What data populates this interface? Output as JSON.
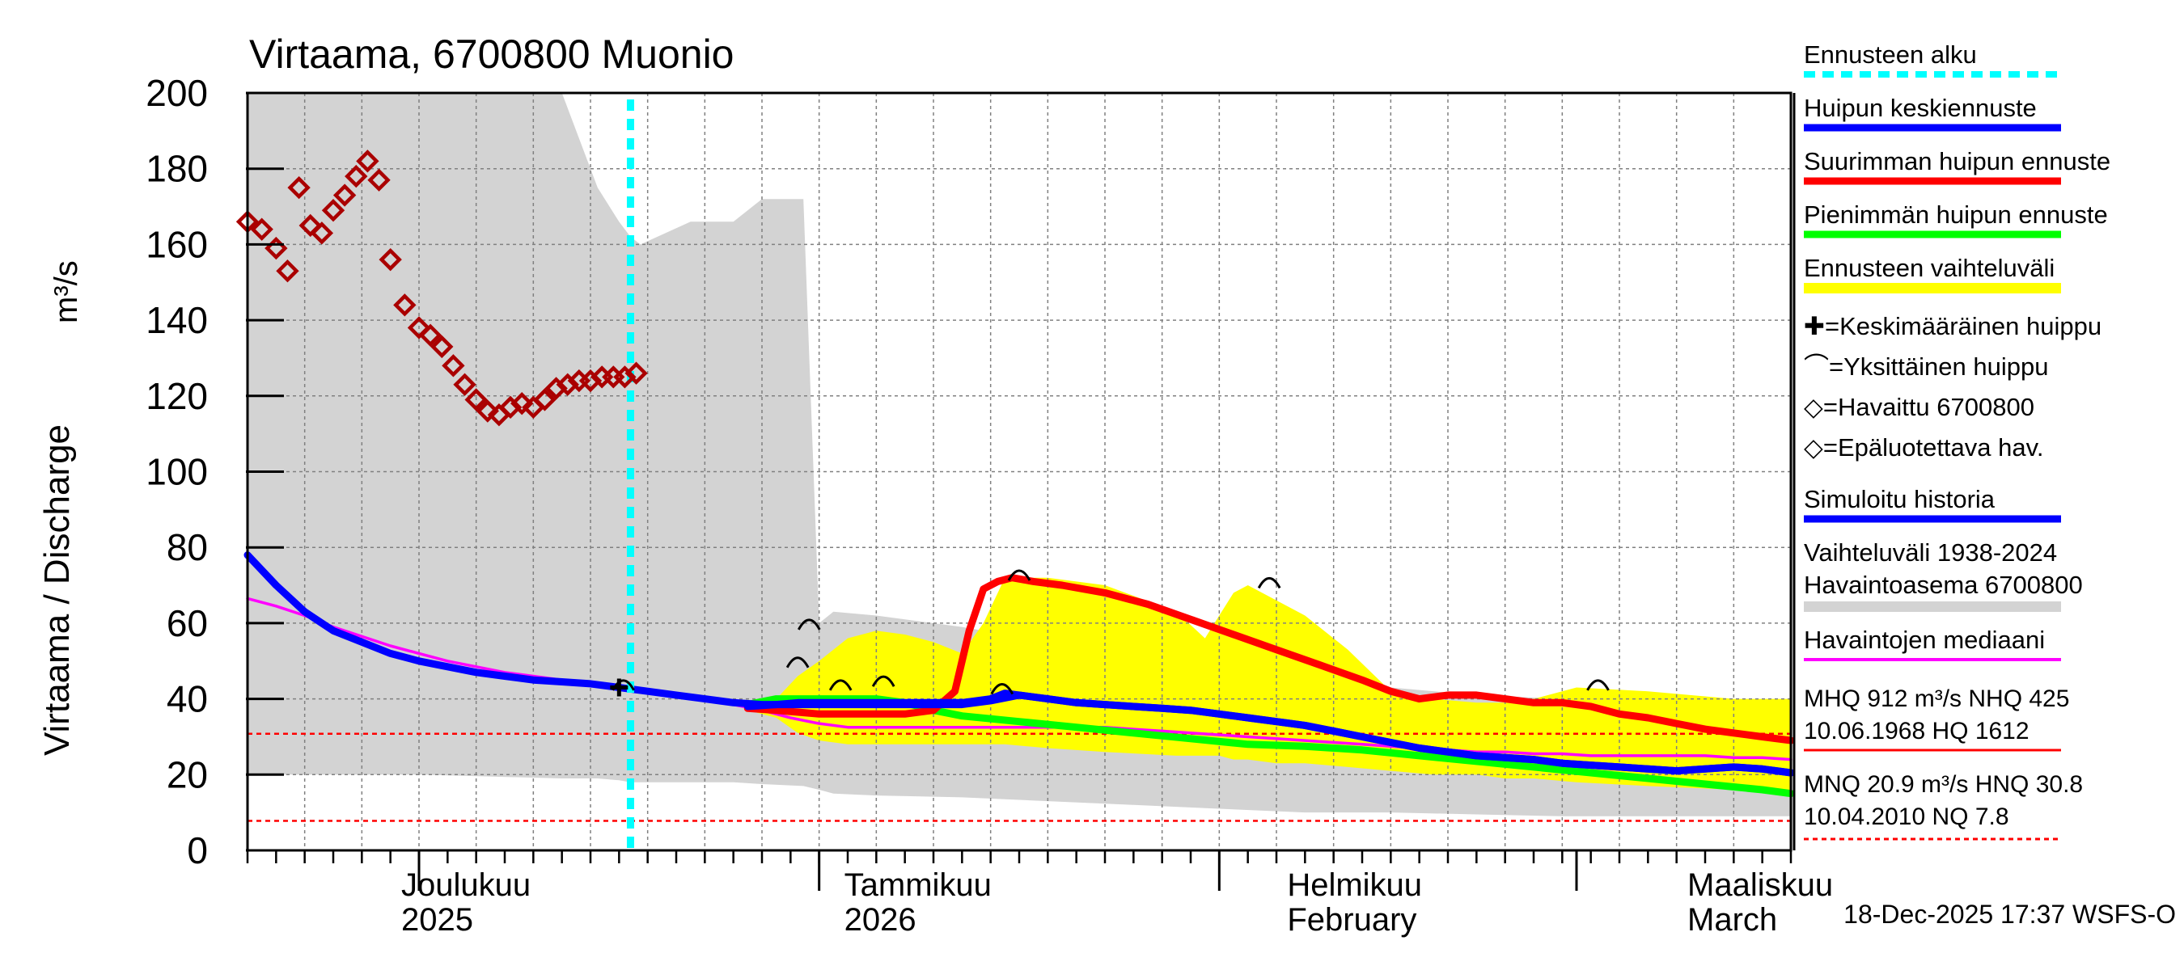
{
  "chart_data": {
    "type": "line",
    "title": "Virtaama, 6700800 Muonio",
    "ylabel": "Virtaama / Discharge",
    "yunit": "m³/s",
    "ylim": [
      0,
      200
    ],
    "yticks": [
      0,
      20,
      40,
      60,
      80,
      100,
      120,
      140,
      160,
      180,
      200
    ],
    "xlim_days": [
      0,
      108
    ],
    "month_labels": [
      {
        "day": 15,
        "line1": "Joulukuu",
        "line2": "2025"
      },
      {
        "day": 46,
        "line1": "Tammikuu",
        "line2": "2026"
      },
      {
        "day": 77,
        "line1": "Helmikuu",
        "line2": "February"
      },
      {
        "day": 105,
        "line1": "Maaliskuu",
        "line2": "March"
      }
    ],
    "month_boundaries": [
      12,
      40,
      68,
      93
    ],
    "forecast_start_day": 26.8,
    "reference_lines": [
      {
        "name": "HNQ",
        "value": 30.8
      },
      {
        "name": "NQ",
        "value": 7.8
      }
    ],
    "history_range": {
      "x": [
        0,
        12,
        22,
        24.5,
        26,
        26.8,
        27.5,
        31,
        34,
        36,
        38.9,
        40,
        41,
        44,
        50,
        56,
        62,
        68,
        74,
        80,
        86,
        92,
        98,
        104,
        108
      ],
      "upper": [
        200,
        200,
        200,
        175,
        166,
        162,
        160,
        166,
        166,
        172,
        172,
        60,
        63,
        62,
        59,
        55,
        50,
        47,
        44,
        43,
        41,
        40,
        40,
        39,
        38
      ],
      "lower": [
        20,
        20,
        19,
        19,
        18.5,
        18,
        18,
        18,
        18,
        17.5,
        17,
        16,
        15,
        14.5,
        14,
        13,
        12,
        11,
        10,
        10,
        9.5,
        9,
        9,
        9,
        9
      ]
    },
    "forecast_range": {
      "x": [
        35,
        37,
        38.5,
        40,
        42,
        44,
        46,
        48,
        50,
        51.5,
        53,
        56,
        60,
        65,
        67,
        68,
        69,
        70,
        72,
        74,
        77,
        80,
        83,
        86,
        88,
        90,
        93,
        98,
        104,
        108
      ],
      "upper": [
        38,
        40,
        46,
        50,
        56,
        58,
        57,
        55,
        52,
        60,
        72,
        72,
        70,
        63,
        56,
        62,
        68,
        70,
        66,
        62,
        53,
        42,
        40,
        39,
        39,
        40,
        43,
        42,
        40,
        40
      ],
      "lower": [
        37,
        35,
        31,
        29,
        28,
        28,
        28,
        28,
        28,
        28,
        28,
        27,
        26,
        25,
        25,
        25,
        24,
        24,
        23,
        23,
        22,
        21,
        20,
        20,
        19,
        19,
        18,
        17,
        16,
        15
      ]
    },
    "series": [
      {
        "name": "Simuloitu historia",
        "color": "#0000ff",
        "x": [
          0,
          2,
          4,
          6,
          8,
          10,
          12,
          14,
          16,
          18,
          20,
          22,
          24,
          26,
          28,
          30,
          32,
          34,
          36,
          38,
          40,
          42,
          44,
          46,
          48,
          50,
          52,
          54,
          56,
          58,
          60,
          62,
          64,
          66,
          68,
          70,
          72,
          74,
          76,
          78,
          80,
          82,
          84,
          86,
          88,
          90,
          92,
          94,
          96,
          98,
          100,
          102,
          104,
          106,
          108
        ],
        "y": [
          78,
          70,
          63,
          58,
          55,
          52,
          50,
          48.5,
          47,
          46,
          45,
          44.5,
          44,
          43,
          42,
          41,
          40,
          39,
          38.5,
          38.5,
          38.5,
          38.5,
          38.5,
          38.5,
          38.5,
          38.5,
          39.5,
          41,
          40,
          39,
          38.5,
          38,
          37.5,
          37,
          36,
          35,
          34,
          33,
          31.5,
          30,
          28.5,
          27,
          26,
          25,
          24.5,
          24,
          23,
          22.5,
          22,
          21.5,
          21,
          21.5,
          22,
          21.5,
          20.5
        ]
      },
      {
        "name": "Havaintojen mediaani",
        "color": "#ff00ff",
        "x": [
          0,
          2,
          4,
          6,
          8,
          10,
          12,
          14,
          16,
          18,
          20,
          22,
          24,
          26,
          28,
          30,
          32,
          34,
          36,
          38,
          40,
          42,
          44,
          46,
          48,
          50,
          52,
          54,
          56,
          58,
          60,
          62,
          64,
          66,
          68,
          70,
          72,
          74,
          76,
          78,
          80,
          82,
          84,
          86,
          88,
          90,
          92,
          94,
          96,
          98,
          100,
          102,
          104,
          106,
          108
        ],
        "y": [
          66.5,
          64.5,
          62,
          59,
          56.5,
          54,
          52,
          50,
          48.5,
          47,
          46,
          45,
          44.5,
          43.5,
          42.5,
          41.5,
          40,
          38.5,
          37,
          35,
          33.5,
          32.5,
          32.5,
          32.5,
          32.5,
          32.5,
          32.5,
          32.5,
          32.5,
          32.5,
          32.5,
          32,
          31.5,
          31,
          30.5,
          30,
          29.5,
          29,
          28.5,
          28,
          27.5,
          27,
          26.5,
          26,
          26,
          25.5,
          25.5,
          25,
          25,
          25,
          25,
          25,
          24.5,
          24.5,
          24
        ]
      },
      {
        "name": "Huipun keskiennuste",
        "color": "#0000ff",
        "x": [
          35,
          37,
          38.5,
          40,
          42,
          44,
          46,
          48,
          50,
          52,
          53,
          54,
          56,
          58,
          60,
          62,
          64,
          66,
          68,
          70,
          72,
          74,
          76,
          78,
          80,
          82,
          84,
          86,
          88,
          90,
          92,
          94,
          96,
          98,
          100,
          102,
          104,
          106,
          108
        ],
        "y": [
          38,
          38.5,
          39,
          39,
          39,
          39,
          39,
          39,
          39,
          40,
          41.5,
          41,
          40,
          39,
          38.5,
          38,
          37.5,
          37,
          36,
          35,
          34,
          33,
          31.5,
          30,
          28.5,
          27,
          26,
          25,
          24.5,
          24,
          23,
          22.5,
          22,
          21.5,
          21,
          21.5,
          22,
          21.5,
          20.5
        ]
      },
      {
        "name": "Suurimman huipun ennuste",
        "color": "#ff0000",
        "x": [
          35,
          37,
          38.5,
          40,
          42,
          44,
          46,
          48,
          49.5,
          50.5,
          51.5,
          52.5,
          53.5,
          55,
          57,
          60,
          63,
          66,
          69,
          72,
          75,
          78,
          80,
          82,
          84,
          86,
          88,
          90,
          92,
          94,
          96,
          98,
          100,
          102,
          104,
          106,
          108
        ],
        "y": [
          37.5,
          37,
          36.5,
          36,
          36,
          36,
          36,
          37,
          42,
          58,
          69,
          71,
          72,
          71,
          70,
          68,
          65,
          61,
          57,
          53,
          49,
          45,
          42,
          40,
          41,
          41,
          40,
          39,
          39,
          38,
          36,
          35,
          33.5,
          32,
          31,
          30,
          29
        ]
      },
      {
        "name": "Pienimmän huipun ennuste",
        "color": "#00ff00",
        "x": [
          35,
          37,
          38.5,
          40,
          42,
          44,
          46,
          48,
          50,
          54,
          58,
          62,
          66,
          70,
          74,
          78,
          82,
          86,
          90,
          94,
          98,
          102,
          106,
          108
        ],
        "y": [
          38.5,
          40,
          40,
          40,
          40,
          40,
          39,
          37,
          35.5,
          34,
          32.5,
          31,
          29.5,
          28,
          27.5,
          26.5,
          25,
          23.5,
          22,
          20.5,
          19,
          17.5,
          16,
          15
        ]
      }
    ],
    "observations": {
      "name": "Epäluotettava hav.",
      "color": "#aa0000",
      "x": [
        0,
        1,
        2,
        2.8,
        3.6,
        4.4,
        5.2,
        6,
        6.8,
        7.6,
        8.4,
        9.2,
        10,
        11,
        12,
        12.8,
        13.6,
        14.4,
        15.2,
        16,
        16.8,
        17.6,
        18.4,
        19.2,
        20,
        20.8,
        21.6,
        22.4,
        23.2,
        24,
        24.8,
        25.6,
        26.4,
        27.2
      ],
      "y": [
        166,
        164,
        159,
        153,
        175,
        165,
        163,
        169,
        173,
        178,
        182,
        177,
        156,
        144,
        138,
        136,
        133,
        128,
        123,
        119,
        116,
        115,
        117,
        118,
        117,
        119,
        122,
        123,
        124,
        124,
        125,
        125,
        125,
        126
      ]
    },
    "mean_peak": {
      "day": 26.0,
      "value": 43
    },
    "individual_peaks": [
      {
        "day": 26.3,
        "value": 44
      },
      {
        "day": 38.5,
        "value": 50
      },
      {
        "day": 39.3,
        "value": 60
      },
      {
        "day": 41.5,
        "value": 44
      },
      {
        "day": 44.5,
        "value": 45
      },
      {
        "day": 52.8,
        "value": 43
      },
      {
        "day": 54,
        "value": 73
      },
      {
        "day": 71.5,
        "value": 71
      },
      {
        "day": 94.5,
        "value": 44
      }
    ],
    "legend": [
      {
        "kind": "dashed",
        "color": "#00ffff",
        "label": "Ennusteen alku"
      },
      {
        "kind": "line",
        "color": "#0000ff",
        "label": "Huipun keskiennuste"
      },
      {
        "kind": "line",
        "color": "#ff0000",
        "label": "Suurimman huipun ennuste"
      },
      {
        "kind": "line",
        "color": "#00ff00",
        "label": "Pienimmän huipun ennuste"
      },
      {
        "kind": "band",
        "color": "#ffff00",
        "label": "Ennusteen vaihteluväli"
      },
      {
        "kind": "text",
        "label": "✚=Keskimääräinen huippu"
      },
      {
        "kind": "text",
        "label": "⌒=Yksittäinen huippu"
      },
      {
        "kind": "text",
        "label": "◇=Havaittu 6700800"
      },
      {
        "kind": "text",
        "label": "◇=Epäluotettava hav."
      },
      {
        "kind": "line",
        "color": "#0000ff",
        "label": "Simuloitu historia"
      },
      {
        "kind": "band2",
        "color": "#d3d3d3",
        "label1": "Vaihteluväli 1938-2024",
        "label2": "Havaintoasema 6700800"
      },
      {
        "kind": "thin",
        "color": "#ff00ff",
        "label": "Havaintojen mediaani"
      }
    ],
    "stats": {
      "line1": "MHQ  912 m³/s NHQ  425",
      "line2": "10.06.1968 HQ 1612",
      "line3": "MNQ 20.9 m³/s HNQ 30.8",
      "line4": "10.04.2010 NQ  7.8"
    },
    "timestamp": "18-Dec-2025 17:37 WSFS-O"
  }
}
